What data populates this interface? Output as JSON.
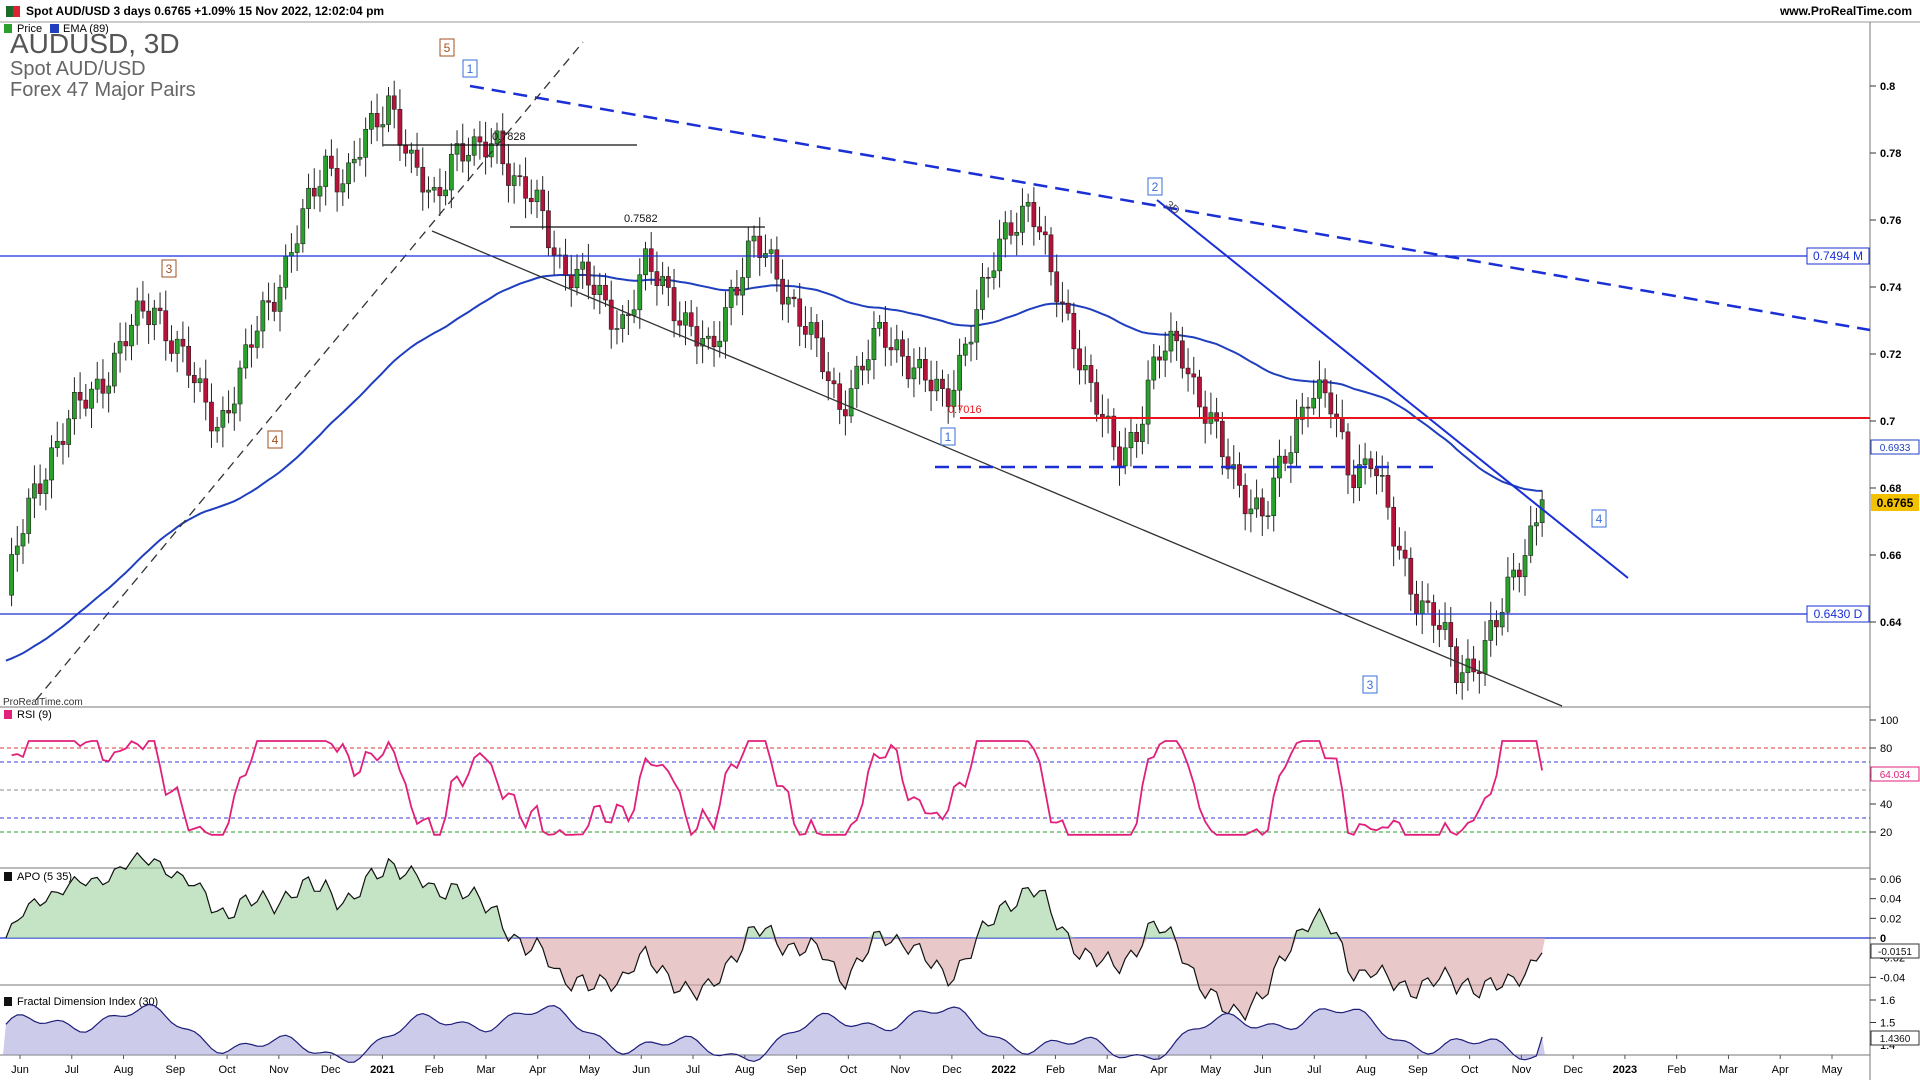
{
  "header": {
    "info": "Spot AUD/USD 3 days 0.6765 +1.09% 15 Nov 2022, 12:02:04 pm",
    "website": "www.ProRealTime.com"
  },
  "legend": {
    "price": "Price",
    "ema": "EMA (89)",
    "rsi": "RSI (9)",
    "apo": "APO (5 35)",
    "fdi": "Fractal Dimension Index (30)"
  },
  "title": {
    "symbol": "AUDUSD, 3D",
    "name": "Spot AUD/USD",
    "group": "Forex 47 Major Pairs"
  },
  "watermark": "ProRealTime.com",
  "colors": {
    "up": "#2ca02c",
    "down": "#b5123a",
    "ema": "#1f3fbf",
    "trend_blue": "#1a2fd6",
    "resistance_red": "#e8161b",
    "rsi": "#e0207a",
    "apo_pos": "#3b7d3b",
    "apo_neg": "#8a3030",
    "fdi": "#1d1d7a"
  },
  "chart_data": [
    {
      "type": "line",
      "chart": "candlestick price AUD/USD, 3-day bars",
      "y_range": [
        0.618,
        0.815
      ],
      "x_months": [
        "Jun",
        "Jul",
        "Aug",
        "Sep",
        "Oct",
        "Nov",
        "Dec",
        "2021",
        "Feb",
        "Mar",
        "Apr",
        "May",
        "Jun",
        "Jul",
        "Aug",
        "Sep",
        "Oct",
        "Nov",
        "Dec",
        "2022",
        "Feb",
        "Mar",
        "Apr",
        "May",
        "Jun",
        "Jul",
        "Aug",
        "Sep",
        "Oct",
        "Nov",
        "Dec",
        "2023",
        "Feb",
        "Mar",
        "Apr",
        "May"
      ],
      "y_ticks": [
        "0.8",
        "0.78",
        "0.76",
        "0.74",
        "0.72",
        "0.7",
        "0.68",
        "0.66",
        "0.64"
      ],
      "close_path": [
        0.648,
        0.672,
        0.69,
        0.7,
        0.708,
        0.718,
        0.728,
        0.735,
        0.722,
        0.708,
        0.7,
        0.712,
        0.732,
        0.745,
        0.76,
        0.778,
        0.772,
        0.785,
        0.798,
        0.775,
        0.765,
        0.782,
        0.778,
        0.785,
        0.77,
        0.762,
        0.748,
        0.742,
        0.735,
        0.73,
        0.745,
        0.74,
        0.728,
        0.718,
        0.74,
        0.752,
        0.745,
        0.735,
        0.72,
        0.705,
        0.715,
        0.725,
        0.722,
        0.712,
        0.705,
        0.725,
        0.74,
        0.76,
        0.765,
        0.742,
        0.728,
        0.705,
        0.69,
        0.698,
        0.718,
        0.725,
        0.705,
        0.69,
        0.68,
        0.67,
        0.69,
        0.71,
        0.705,
        0.685,
        0.69,
        0.665,
        0.65,
        0.64,
        0.625,
        0.63,
        0.64,
        0.66,
        0.6765
      ],
      "last_price": "0.6765",
      "ema_last": "0.6933",
      "levels": [
        {
          "label": "0.7494 M",
          "value": 0.7494
        },
        {
          "label": "0.6430 D",
          "value": 0.643
        },
        {
          "label": "0.7016",
          "value": 0.7016
        }
      ],
      "annotations": {
        "fib_0_7828": "0.7828",
        "fib_0_7582": "0.7582",
        "wave_orange": [
          "5",
          "3",
          "4"
        ],
        "wave_blue": [
          "1",
          "2",
          "1",
          "3",
          "4"
        ],
        "tf_mark": "3D"
      }
    },
    {
      "type": "line",
      "chart": "RSI (9)",
      "y_range": [
        0,
        100
      ],
      "y_ticks": [
        "100",
        "80",
        "60",
        "40",
        "20"
      ],
      "last": "64.034",
      "levels": [
        80,
        70,
        50,
        30,
        20
      ]
    },
    {
      "type": "area",
      "chart": "APO (5 35)",
      "y_ticks": [
        "0.06",
        "0.04",
        "0.02",
        "0",
        "-0.02",
        "-0.04"
      ],
      "last": "-0.0151"
    },
    {
      "type": "area",
      "chart": "Fractal Dimension Index (30)",
      "y_ticks": [
        "1.6",
        "1.5",
        "1.4"
      ],
      "last": "1.4360"
    }
  ]
}
